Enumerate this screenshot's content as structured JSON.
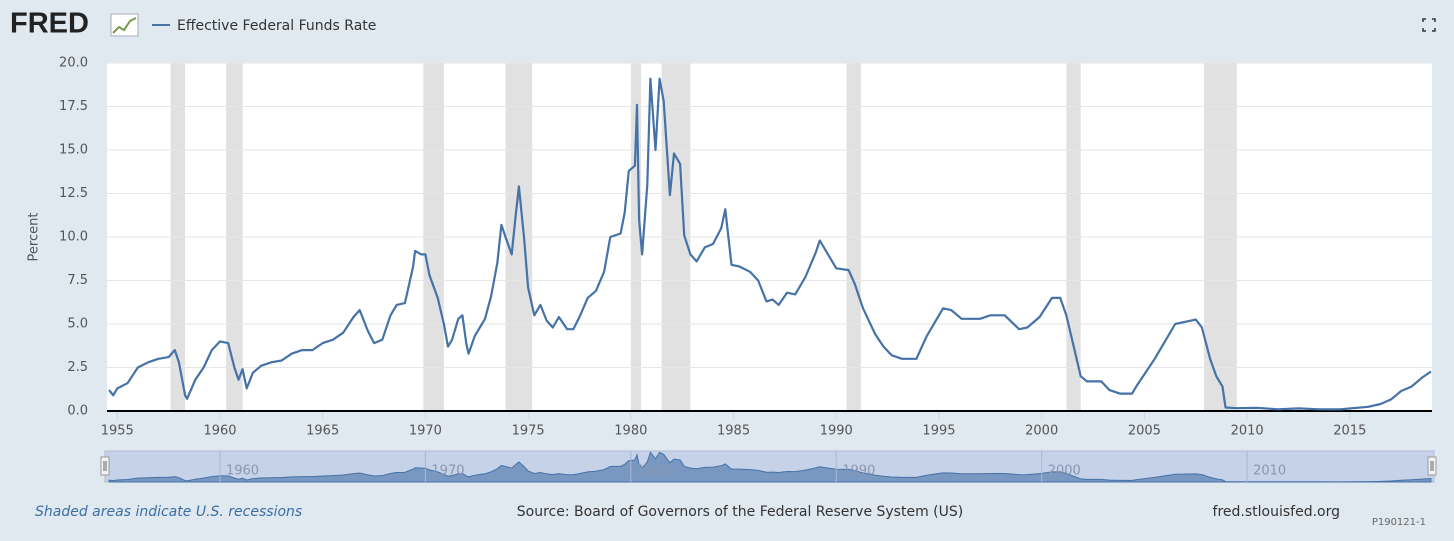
{
  "chart_data": {
    "type": "line",
    "brand": "FRED",
    "y_label": "Percent",
    "note": "Shaded areas indicate U.S. recessions",
    "source": "Source: Board of Governors of the Federal Reserve System (US)",
    "url": "fred.stlouisfed.org",
    "id": "P190121-1",
    "grid": true,
    "xlim": [
      1954.5,
      2019.0
    ],
    "ylim": [
      0,
      20
    ],
    "xticks": [
      1955,
      1960,
      1965,
      1970,
      1975,
      1980,
      1985,
      1990,
      1995,
      2000,
      2005,
      2010,
      2015
    ],
    "yticks": [
      {
        "value": 0,
        "label": "0.0"
      },
      2.5,
      {
        "value": 5,
        "label": "5.0"
      },
      7.5,
      {
        "value": 10,
        "label": "10.0"
      },
      12.5,
      {
        "value": 15,
        "label": "15.0"
      },
      17.5,
      {
        "value": 20,
        "label": "20.0"
      }
    ],
    "navigator_ticks": [
      1960,
      1970,
      1980,
      1990,
      2000,
      2010
    ],
    "recessions": [
      [
        1957.6,
        1958.3
      ],
      [
        1960.3,
        1961.1
      ],
      [
        1969.9,
        1970.9
      ],
      [
        1973.9,
        1975.2
      ],
      [
        1980.0,
        1980.5
      ],
      [
        1981.5,
        1982.9
      ],
      [
        1990.5,
        1991.2
      ],
      [
        2001.2,
        2001.9
      ],
      [
        2007.9,
        2009.5
      ]
    ],
    "x": [
      1954.6,
      1954.8,
      1955.0,
      1955.5,
      1956.0,
      1956.5,
      1957.0,
      1957.5,
      1957.8,
      1958.0,
      1958.3,
      1958.4,
      1958.8,
      1959.2,
      1959.6,
      1960.0,
      1960.4,
      1960.7,
      1960.9,
      1961.1,
      1961.3,
      1961.6,
      1962.0,
      1962.5,
      1963.0,
      1963.5,
      1964.0,
      1964.5,
      1965.0,
      1965.5,
      1966.0,
      1966.5,
      1966.8,
      1967.2,
      1967.5,
      1967.9,
      1968.3,
      1968.6,
      1969.0,
      1969.4,
      1969.5,
      1969.8,
      1970.0,
      1970.2,
      1970.6,
      1970.9,
      1971.1,
      1971.3,
      1971.6,
      1971.8,
      1972.0,
      1972.1,
      1972.4,
      1972.9,
      1973.2,
      1973.5,
      1973.7,
      1973.9,
      1974.2,
      1974.4,
      1974.55,
      1974.8,
      1975.0,
      1975.3,
      1975.6,
      1975.9,
      1976.2,
      1976.5,
      1976.9,
      1977.2,
      1977.5,
      1977.9,
      1978.3,
      1978.7,
      1979.0,
      1979.5,
      1979.7,
      1979.9,
      1980.2,
      1980.3,
      1980.4,
      1980.55,
      1980.8,
      1980.95,
      1981.2,
      1981.4,
      1981.6,
      1981.9,
      1982.1,
      1982.4,
      1982.6,
      1982.9,
      1983.2,
      1983.6,
      1984.0,
      1984.4,
      1984.6,
      1984.9,
      1985.3,
      1985.8,
      1986.2,
      1986.6,
      1986.9,
      1987.2,
      1987.6,
      1988.0,
      1988.5,
      1989.0,
      1989.2,
      1989.6,
      1990.0,
      1990.6,
      1990.9,
      1991.3,
      1991.9,
      1992.3,
      1992.7,
      1993.2,
      1993.9,
      1994.4,
      1994.9,
      1995.2,
      1995.6,
      1996.1,
      1996.5,
      1997.0,
      1997.5,
      1998.2,
      1998.9,
      1999.3,
      1999.9,
      2000.5,
      2000.9,
      2001.2,
      2001.5,
      2001.9,
      2002.2,
      2002.9,
      2003.3,
      2003.8,
      2004.4,
      2004.6,
      2005.5,
      2006.5,
      2007.5,
      2007.8,
      2008.2,
      2008.5,
      2008.8,
      2008.95,
      2009.5,
      2010.5,
      2011.5,
      2012.5,
      2013.5,
      2014.5,
      2015.9,
      2016.5,
      2017.0,
      2017.5,
      2018.0,
      2018.5,
      2018.95
    ],
    "series": [
      {
        "name": "Effective Federal Funds Rate",
        "color": "#4572a7",
        "values": [
          1.2,
          0.9,
          1.3,
          1.6,
          2.5,
          2.8,
          3.0,
          3.1,
          3.5,
          2.8,
          0.9,
          0.7,
          1.8,
          2.5,
          3.5,
          4.0,
          3.9,
          2.5,
          1.8,
          2.4,
          1.3,
          2.2,
          2.6,
          2.8,
          2.9,
          3.3,
          3.5,
          3.5,
          3.9,
          4.1,
          4.5,
          5.4,
          5.8,
          4.6,
          3.9,
          4.1,
          5.5,
          6.1,
          6.2,
          8.3,
          9.2,
          9.0,
          9.0,
          7.8,
          6.5,
          5.0,
          3.7,
          4.1,
          5.3,
          5.5,
          3.8,
          3.3,
          4.3,
          5.3,
          6.6,
          8.5,
          10.7,
          10.0,
          9.0,
          11.3,
          12.9,
          10.0,
          7.1,
          5.5,
          6.1,
          5.2,
          4.8,
          5.4,
          4.7,
          4.7,
          5.4,
          6.5,
          6.9,
          8.0,
          10.0,
          10.2,
          11.4,
          13.8,
          14.1,
          17.6,
          11.0,
          9.0,
          13.0,
          19.1,
          15.0,
          19.1,
          17.8,
          12.4,
          14.8,
          14.2,
          10.1,
          9.0,
          8.6,
          9.4,
          9.6,
          10.5,
          11.6,
          8.4,
          8.3,
          8.0,
          7.5,
          6.3,
          6.4,
          6.1,
          6.8,
          6.7,
          7.7,
          9.1,
          9.8,
          9.0,
          8.2,
          8.1,
          7.3,
          5.9,
          4.4,
          3.7,
          3.2,
          3.0,
          3.0,
          4.3,
          5.3,
          5.9,
          5.8,
          5.3,
          5.3,
          5.3,
          5.5,
          5.5,
          4.7,
          4.8,
          5.4,
          6.5,
          6.5,
          5.5,
          4.0,
          2.0,
          1.7,
          1.7,
          1.2,
          1.0,
          1.0,
          1.4,
          3.0,
          5.0,
          5.25,
          4.8,
          3.0,
          2.0,
          1.4,
          0.2,
          0.16,
          0.18,
          0.1,
          0.15,
          0.1,
          0.09,
          0.24,
          0.4,
          0.66,
          1.15,
          1.4,
          1.9,
          2.27
        ]
      }
    ]
  }
}
